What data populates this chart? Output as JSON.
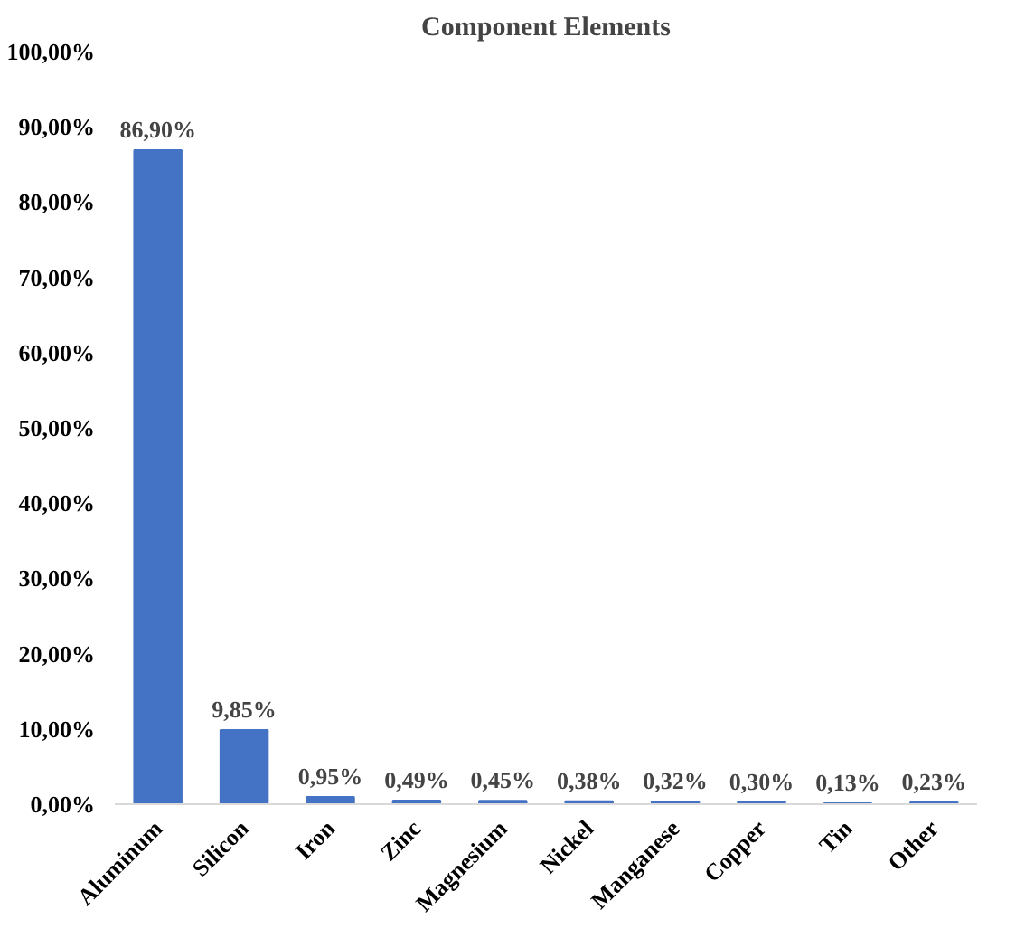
{
  "chart_data": {
    "type": "bar",
    "title": "Component Elements",
    "categories": [
      "Aluminum",
      "Silicon",
      "Iron",
      "Zinc",
      "Magnesium",
      "Nickel",
      "Manganese",
      "Copper",
      "Tin",
      "Other"
    ],
    "values": [
      86.9,
      9.85,
      0.95,
      0.49,
      0.45,
      0.38,
      0.32,
      0.3,
      0.13,
      0.23
    ],
    "value_labels": [
      "86,90%",
      "9,85%",
      "0,95%",
      "0,49%",
      "0,45%",
      "0,38%",
      "0,32%",
      "0,30%",
      "0,13%",
      "0,23%"
    ],
    "color": "#4472c4",
    "ylim": [
      0,
      100
    ],
    "yticks": [
      {
        "value": 0,
        "label": "0,00%"
      },
      {
        "value": 10,
        "label": "10,00%"
      },
      {
        "value": 20,
        "label": "20,00%"
      },
      {
        "value": 30,
        "label": "30,00%"
      },
      {
        "value": 40,
        "label": "40,00%"
      },
      {
        "value": 50,
        "label": "50,00%"
      },
      {
        "value": 60,
        "label": "60,00%"
      },
      {
        "value": 70,
        "label": "70,00%"
      },
      {
        "value": 80,
        "label": "80,00%"
      },
      {
        "value": 90,
        "label": "90,00%"
      },
      {
        "value": 100,
        "label": "100,00%"
      }
    ],
    "grid": false
  }
}
